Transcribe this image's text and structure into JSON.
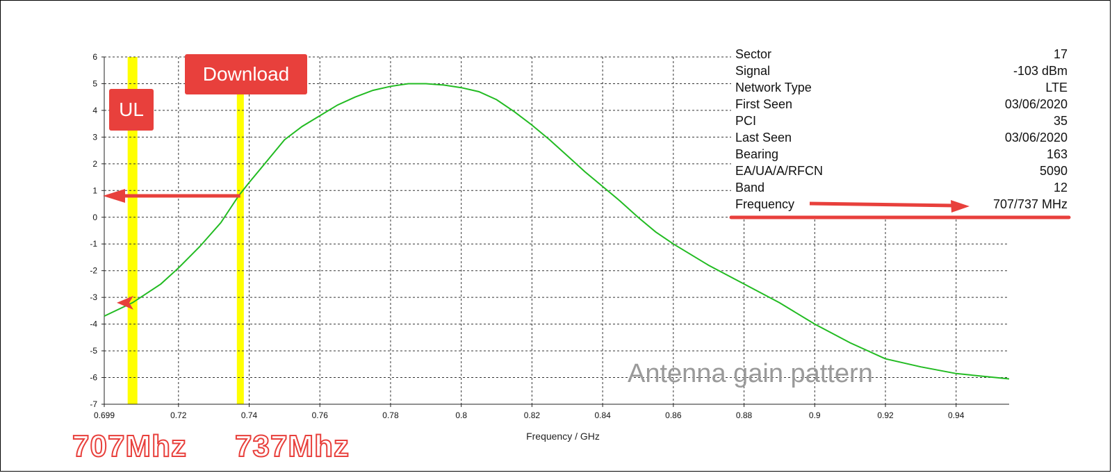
{
  "chart_data": {
    "type": "line",
    "title": "",
    "xlabel": "Frequency / GHz",
    "ylabel": "",
    "xlim": [
      0.699,
      0.955
    ],
    "ylim": [
      -7,
      6
    ],
    "grid": true,
    "x_ticks": [
      "0.699",
      "0.72",
      "0.74",
      "0.76",
      "0.78",
      "0.8",
      "0.82",
      "0.84",
      "0.86",
      "0.88",
      "0.9",
      "0.92",
      "0.94"
    ],
    "x_tick_values": [
      0.699,
      0.72,
      0.74,
      0.76,
      0.78,
      0.8,
      0.82,
      0.84,
      0.86,
      0.88,
      0.9,
      0.92,
      0.94
    ],
    "y_ticks": [
      6,
      5,
      4,
      3,
      2,
      1,
      0,
      -1,
      -2,
      -3,
      -4,
      -5,
      -6,
      -7
    ],
    "series": [
      {
        "color": "#22bb22",
        "x": [
          0.699,
          0.707,
          0.715,
          0.72,
          0.726,
          0.732,
          0.737,
          0.74,
          0.745,
          0.75,
          0.755,
          0.76,
          0.765,
          0.77,
          0.775,
          0.78,
          0.785,
          0.79,
          0.795,
          0.8,
          0.805,
          0.81,
          0.815,
          0.82,
          0.825,
          0.83,
          0.835,
          0.84,
          0.845,
          0.85,
          0.855,
          0.86,
          0.87,
          0.88,
          0.89,
          0.9,
          0.91,
          0.92,
          0.93,
          0.94,
          0.955
        ],
        "y": [
          -3.7,
          -3.2,
          -2.5,
          -1.9,
          -1.1,
          -0.2,
          0.8,
          1.3,
          2.1,
          2.9,
          3.4,
          3.8,
          4.2,
          4.5,
          4.75,
          4.9,
          5.0,
          5.0,
          4.95,
          4.85,
          4.7,
          4.4,
          3.95,
          3.45,
          2.9,
          2.3,
          1.7,
          1.15,
          0.6,
          0.0,
          -0.55,
          -1.0,
          -1.8,
          -2.5,
          -3.2,
          -4.0,
          -4.7,
          -5.3,
          -5.6,
          -5.85,
          -6.05
        ]
      }
    ],
    "annotations": {
      "ul_band_x": 0.707,
      "download_band_x": 0.7375,
      "ul_arrow_y": -3.2,
      "download_arrow_y": 0.8,
      "watermark": "Antenna gain pattern"
    }
  },
  "badges": {
    "ul": "UL",
    "download": "Download"
  },
  "callouts": {
    "ul_freq": "707Mhz",
    "dl_freq": "737Mhz"
  },
  "info": {
    "rows": [
      {
        "label": "Sector",
        "value": "17"
      },
      {
        "label": "Signal",
        "value": "-103 dBm"
      },
      {
        "label": "Network Type",
        "value": "LTE"
      },
      {
        "label": "First Seen",
        "value": "03/06/2020"
      },
      {
        "label": "PCI",
        "value": "35"
      },
      {
        "label": "Last Seen",
        "value": "03/06/2020"
      },
      {
        "label": "Bearing",
        "value": "163"
      },
      {
        "label": "EA/UA/A/RFCN",
        "value": "5090"
      },
      {
        "label": "Band",
        "value": "12"
      },
      {
        "label": "Frequency",
        "value": "707/737 MHz"
      }
    ]
  },
  "colors": {
    "accent_red": "#e8403c",
    "band_yellow": "#ffff00",
    "curve_green": "#22bb22"
  }
}
